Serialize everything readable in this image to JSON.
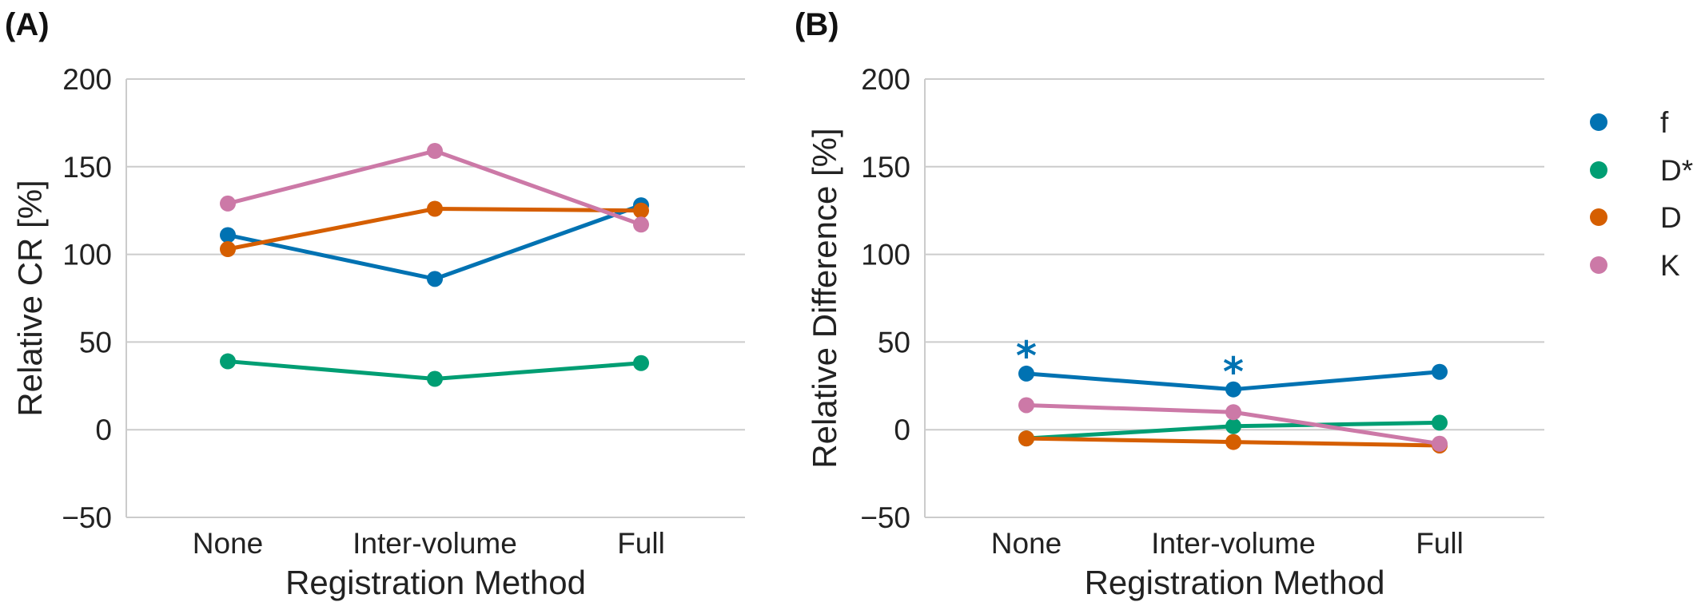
{
  "chart_data": [
    {
      "panel_label": "(A)",
      "type": "line",
      "categories": [
        "None",
        "Inter-volume",
        "Full"
      ],
      "xlabel": "Registration Method",
      "ylabel": "Relative CR [%]",
      "ylim": [
        -50,
        200
      ],
      "yticks": [
        -50,
        0,
        50,
        100,
        150,
        200
      ],
      "ytick_labels": [
        "−50",
        "0",
        "50",
        "100",
        "150",
        "200"
      ],
      "grid": true,
      "series": [
        {
          "name": "f",
          "color": "#0072B2",
          "values": [
            111,
            86,
            128
          ]
        },
        {
          "name": "D*",
          "color": "#009E73",
          "values": [
            39,
            29,
            38
          ]
        },
        {
          "name": "D",
          "color": "#D55E00",
          "values": [
            103,
            126,
            125
          ]
        },
        {
          "name": "K",
          "color": "#CC79A7",
          "values": [
            129,
            159,
            117
          ]
        }
      ]
    },
    {
      "panel_label": "(B)",
      "type": "line",
      "categories": [
        "None",
        "Inter-volume",
        "Full"
      ],
      "xlabel": "Registration Method",
      "ylabel": "Relative Difference [%]",
      "ylim": [
        -50,
        200
      ],
      "yticks": [
        -50,
        0,
        50,
        100,
        150,
        200
      ],
      "ytick_labels": [
        "−50",
        "0",
        "50",
        "100",
        "150",
        "200"
      ],
      "grid": true,
      "series": [
        {
          "name": "f",
          "color": "#0072B2",
          "values": [
            32,
            23,
            33
          ]
        },
        {
          "name": "D*",
          "color": "#009E73",
          "values": [
            -5,
            2,
            4
          ]
        },
        {
          "name": "D",
          "color": "#D55E00",
          "values": [
            -5,
            -7,
            -9
          ]
        },
        {
          "name": "K",
          "color": "#CC79A7",
          "values": [
            14,
            10,
            -8
          ]
        }
      ],
      "annotations": [
        {
          "text": "*",
          "category": "None",
          "y": 47,
          "color": "#0072B2"
        },
        {
          "text": "*",
          "category": "Inter-volume",
          "y": 38,
          "color": "#0072B2"
        }
      ]
    }
  ],
  "legend": {
    "placement": "right",
    "entries": [
      {
        "label": "f",
        "color": "#0072B2"
      },
      {
        "label": "D*",
        "color": "#009E73"
      },
      {
        "label": "D",
        "color": "#D55E00"
      },
      {
        "label": "K",
        "color": "#CC79A7"
      }
    ]
  }
}
